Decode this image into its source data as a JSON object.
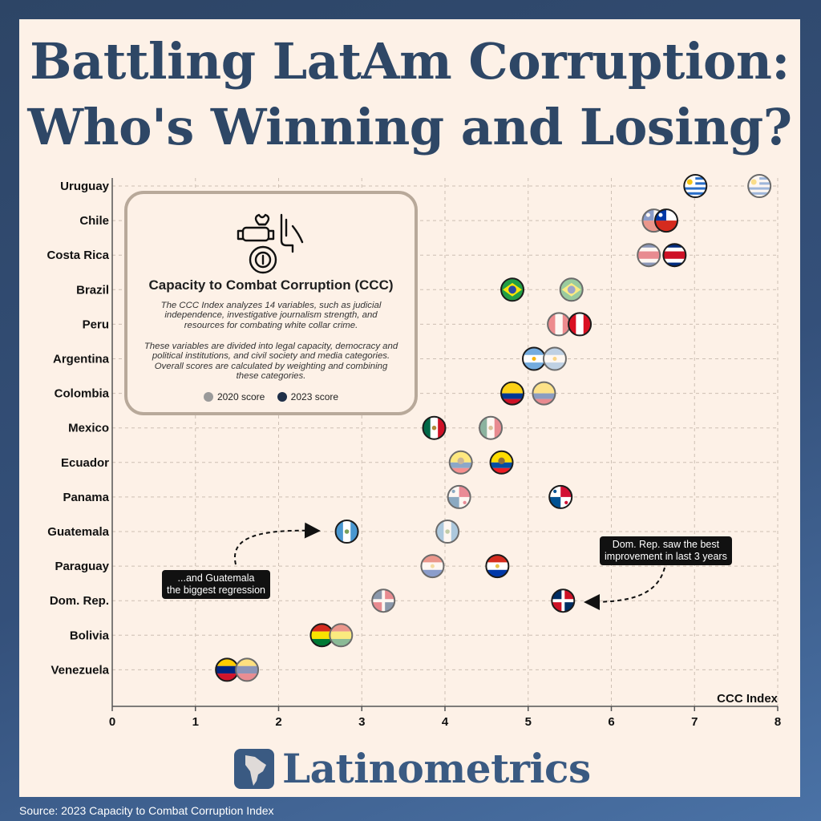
{
  "title_line1": "Battling LatAm Corruption:",
  "title_line2": "Who's Winning and Losing?",
  "legend": {
    "title": "Capacity to Combat Corruption (CCC)",
    "para1": "The CCC Index analyzes 14 variables, such as judicial independence, investigative journalism strength, and resources for combating white collar crime.",
    "para2": "These variables are divided into legal capacity, democracy and political institutions, and civil society and media categories. Overall scores are calculated by weighting and combining these categories.",
    "key_2020": "2020 score",
    "key_2023": "2023 score",
    "color_2020": "#9a9a9a",
    "color_2023": "#1f2f48"
  },
  "annotations": {
    "left": [
      "...and Guatemala",
      "the biggest regression"
    ],
    "right": [
      "Dom. Rep. saw the best",
      "improvement in last 3 years"
    ]
  },
  "brand": {
    "name": "Latinometrics",
    "icon": "latam-map-icon"
  },
  "source": "Source: 2023 Capacity to Combat Corruption Index",
  "chart_data": {
    "type": "scatter",
    "xlabel": "CCC Index",
    "xlim": [
      0,
      8
    ],
    "xticks": [
      "0",
      "1",
      "2",
      "3",
      "4",
      "5",
      "6",
      "7",
      "8"
    ],
    "grid": true,
    "categories": [
      "Uruguay",
      "Chile",
      "Costa Rica",
      "Brazil",
      "Peru",
      "Argentina",
      "Colombia",
      "Mexico",
      "Ecuador",
      "Panama",
      "Guatemala",
      "Paraguay",
      "Dom. Rep.",
      "Bolivia",
      "Venezuela"
    ],
    "series": [
      {
        "name": "2020 score",
        "values": [
          7.78,
          6.51,
          6.45,
          5.52,
          5.37,
          5.32,
          5.19,
          4.55,
          4.19,
          4.17,
          4.03,
          3.85,
          3.26,
          2.75,
          1.62
        ]
      },
      {
        "name": "2023 score",
        "values": [
          7.01,
          6.66,
          6.76,
          4.81,
          5.62,
          5.07,
          4.81,
          3.87,
          4.68,
          5.39,
          2.82,
          4.63,
          5.42,
          2.52,
          1.38
        ]
      }
    ]
  }
}
